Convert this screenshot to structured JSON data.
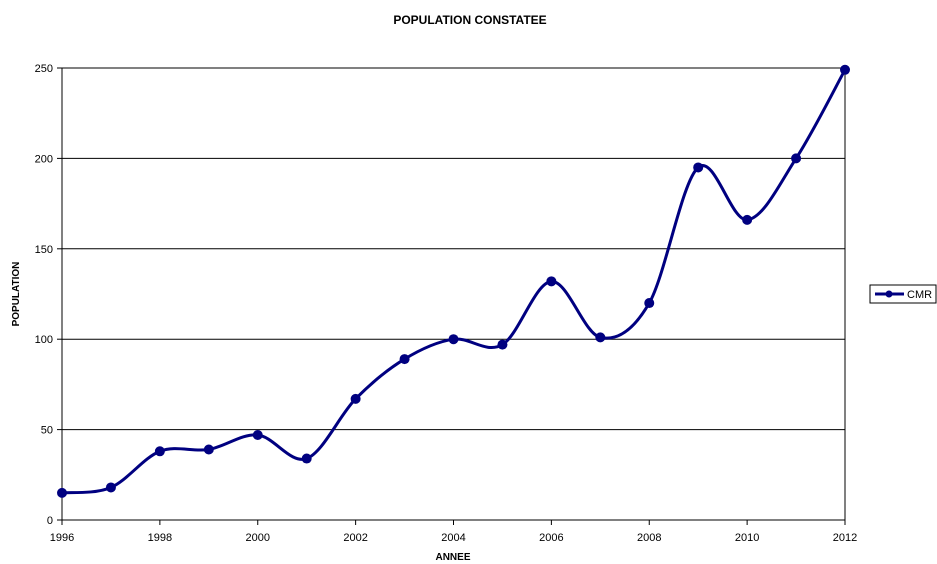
{
  "chart_data": {
    "type": "line",
    "title": "POPULATION CONSTATEE",
    "xlabel": "ANNEE",
    "ylabel": "POPULATION",
    "x": [
      1996,
      1997,
      1998,
      1999,
      2000,
      2001,
      2002,
      2003,
      2004,
      2005,
      2006,
      2007,
      2008,
      2009,
      2010,
      2011,
      2012
    ],
    "series": [
      {
        "name": "CMR",
        "values": [
          15,
          18,
          38,
          39,
          47,
          34,
          67,
          89,
          100,
          97,
          132,
          101,
          120,
          195,
          166,
          200,
          249
        ]
      }
    ],
    "xlim": [
      1996,
      2012
    ],
    "ylim": [
      0,
      250
    ],
    "xticks": [
      "1996",
      "1998",
      "2000",
      "2002",
      "2004",
      "2006",
      "2008",
      "2010",
      "2012"
    ],
    "yticks": [
      "0",
      "50",
      "100",
      "150",
      "200",
      "250"
    ],
    "grid": "horizontal",
    "smooth": true,
    "markers": "circle",
    "legend": "right",
    "colors": {
      "series": "#000080",
      "grid": "#000000",
      "axis": "#000000"
    }
  }
}
